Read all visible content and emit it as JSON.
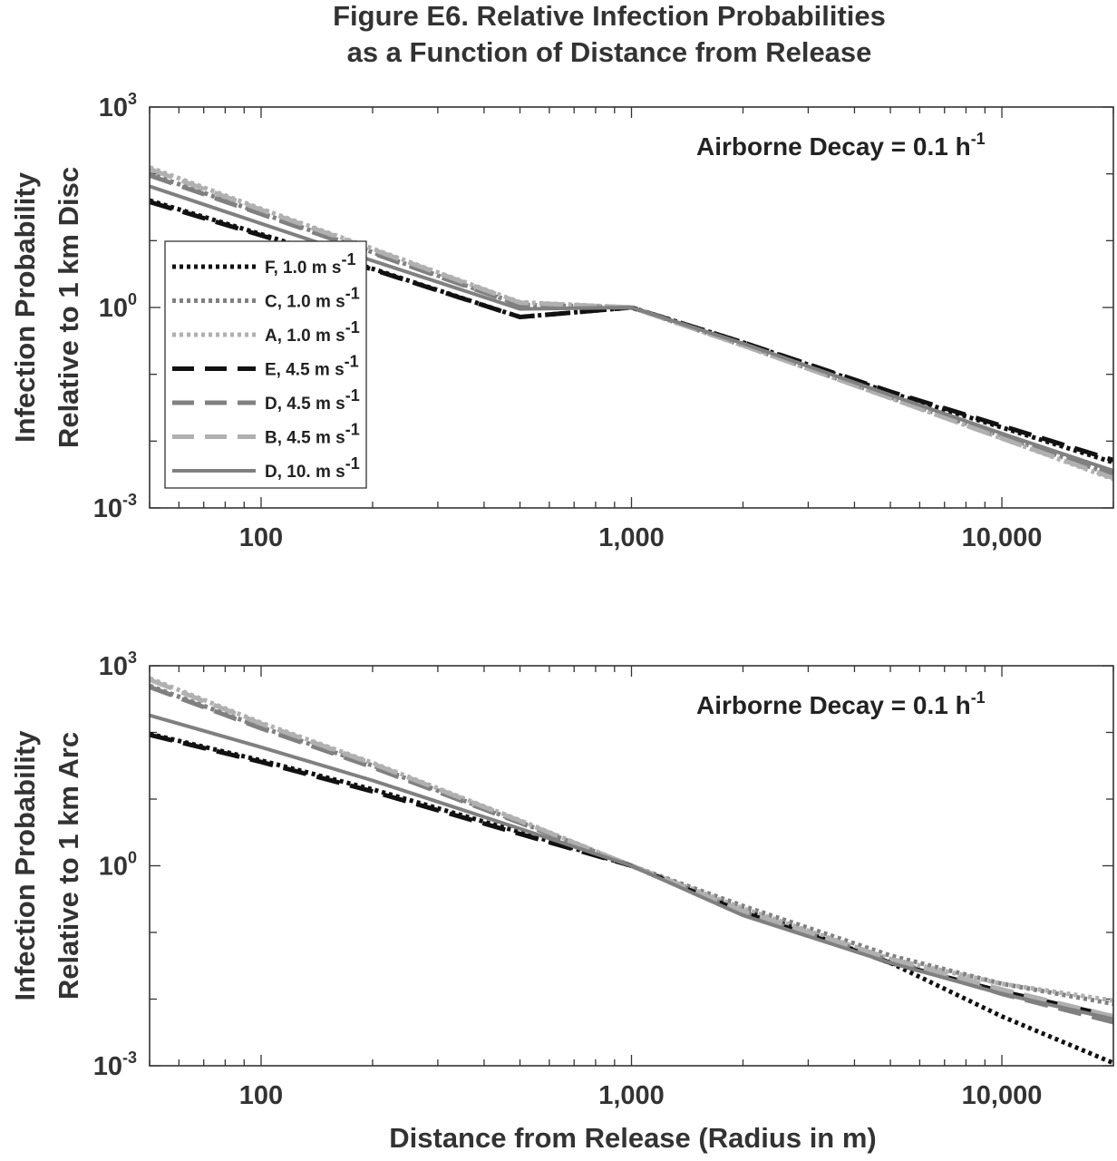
{
  "figure": {
    "title_line1": "Figure E6. Relative Infection Probabilities",
    "title_line2": "as a Function of Distance from Release",
    "xlabel": "Distance from Release (Radius in m)"
  },
  "colors": {
    "black": "#111111",
    "mid_gray": "#808080",
    "light_gray": "#b0b0b0",
    "axis": "#333333"
  },
  "chart_data": [
    {
      "type": "line",
      "xscale": "log",
      "yscale": "log",
      "xlim": [
        50,
        20000
      ],
      "ylim": [
        0.001,
        1000
      ],
      "x_ticks": [
        100,
        1000,
        10000
      ],
      "x_tick_labels": [
        "100",
        "1,000",
        "10,000"
      ],
      "y_ticks": [
        0.001,
        1,
        1000
      ],
      "y_tick_labels": [
        {
          "base": "10",
          "exp": "-3"
        },
        {
          "base": "10",
          "exp": "0"
        },
        {
          "base": "10",
          "exp": "3"
        }
      ],
      "ylabel_line1": "Infection Probability",
      "ylabel_line2": "Relative to 1 km Disc",
      "annotation": {
        "text": "Airborne Decay = 0.1 h",
        "exp": "-1"
      },
      "legend_position": "left",
      "x": [
        50,
        100,
        200,
        500,
        1000,
        2000,
        5000,
        10000,
        20000
      ],
      "series": [
        {
          "name": "F, 1.0 m s",
          "unit_exp": "-1",
          "style": "dotted",
          "color": "black",
          "values": [
            40,
            12.5,
            3.8,
            0.72,
            1.0,
            0.3,
            0.053,
            0.016,
            0.0048
          ]
        },
        {
          "name": "C, 1.0 m s",
          "unit_exp": "-1",
          "style": "dotted",
          "color": "mid_gray",
          "values": [
            100,
            26,
            6.7,
            1.1,
            1.0,
            0.27,
            0.045,
            0.012,
            0.0031
          ]
        },
        {
          "name": "A, 1.0 m s",
          "unit_exp": "-1",
          "style": "dotted",
          "color": "light_gray",
          "values": [
            125,
            30,
            7.6,
            1.2,
            1.0,
            0.27,
            0.044,
            0.011,
            0.0027
          ]
        },
        {
          "name": "E, 4.5 m s",
          "unit_exp": "-1",
          "style": "dashed",
          "color": "black",
          "values": [
            38,
            12,
            3.7,
            0.72,
            1.0,
            0.3,
            0.055,
            0.017,
            0.0052
          ]
        },
        {
          "name": "D, 4.5 m s",
          "unit_exp": "-1",
          "style": "dashed",
          "color": "mid_gray",
          "values": [
            95,
            25,
            6.5,
            1.08,
            1.0,
            0.28,
            0.046,
            0.012,
            0.0032
          ]
        },
        {
          "name": "B, 4.5 m s",
          "unit_exp": "-1",
          "style": "dashed",
          "color": "light_gray",
          "values": [
            118,
            29,
            7.4,
            1.18,
            1.0,
            0.27,
            0.044,
            0.011,
            0.0028
          ]
        },
        {
          "name": "D, 10. m s",
          "unit_exp": "-1",
          "style": "solid",
          "color": "mid_gray",
          "values": [
            65,
            18,
            5.0,
            0.95,
            1.0,
            0.29,
            0.049,
            0.013,
            0.0036
          ]
        }
      ]
    },
    {
      "type": "line",
      "xscale": "log",
      "yscale": "log",
      "xlim": [
        50,
        20000
      ],
      "ylim": [
        0.001,
        1000
      ],
      "x_ticks": [
        100,
        1000,
        10000
      ],
      "x_tick_labels": [
        "100",
        "1,000",
        "10,000"
      ],
      "y_ticks": [
        0.001,
        1,
        1000
      ],
      "y_tick_labels": [
        {
          "base": "10",
          "exp": "-3"
        },
        {
          "base": "10",
          "exp": "0"
        },
        {
          "base": "10",
          "exp": "3"
        }
      ],
      "ylabel_line1": "Infection Probability",
      "ylabel_line2": "Relative to 1 km Arc",
      "annotation": {
        "text": "Airborne Decay = 0.1 h",
        "exp": "-1"
      },
      "x": [
        50,
        100,
        200,
        500,
        1000,
        2000,
        5000,
        10000,
        20000
      ],
      "series": [
        {
          "name": "F, 1.0 m s",
          "style": "dotted",
          "color": "black",
          "values": [
            95,
            38,
            14,
            3.2,
            1.0,
            0.22,
            0.035,
            0.0055,
            0.0011
          ]
        },
        {
          "name": "C, 1.0 m s",
          "style": "dotted",
          "color": "mid_gray",
          "values": [
            500,
            120,
            32,
            4.5,
            1.0,
            0.25,
            0.045,
            0.017,
            0.0085
          ]
        },
        {
          "name": "A, 1.0 m s",
          "style": "dotted",
          "color": "light_gray",
          "values": [
            650,
            140,
            35,
            4.8,
            1.0,
            0.23,
            0.04,
            0.017,
            0.0095
          ]
        },
        {
          "name": "E, 4.5 m s",
          "style": "dashed",
          "color": "black",
          "values": [
            92,
            36,
            13,
            3.0,
            1.0,
            0.2,
            0.035,
            0.013,
            0.0055
          ]
        },
        {
          "name": "D, 4.5 m s",
          "style": "dashed",
          "color": "mid_gray",
          "values": [
            480,
            115,
            30,
            4.4,
            1.0,
            0.2,
            0.038,
            0.012,
            0.0045
          ]
        },
        {
          "name": "B, 4.5 m s",
          "style": "dashed",
          "color": "light_gray",
          "values": [
            620,
            135,
            34,
            4.7,
            1.0,
            0.21,
            0.04,
            0.014,
            0.0055
          ]
        },
        {
          "name": "D, 10. m s",
          "style": "solid",
          "color": "mid_gray",
          "values": [
            180,
            60,
            19,
            3.6,
            1.0,
            0.18,
            0.035,
            0.012,
            0.005
          ]
        }
      ]
    }
  ]
}
